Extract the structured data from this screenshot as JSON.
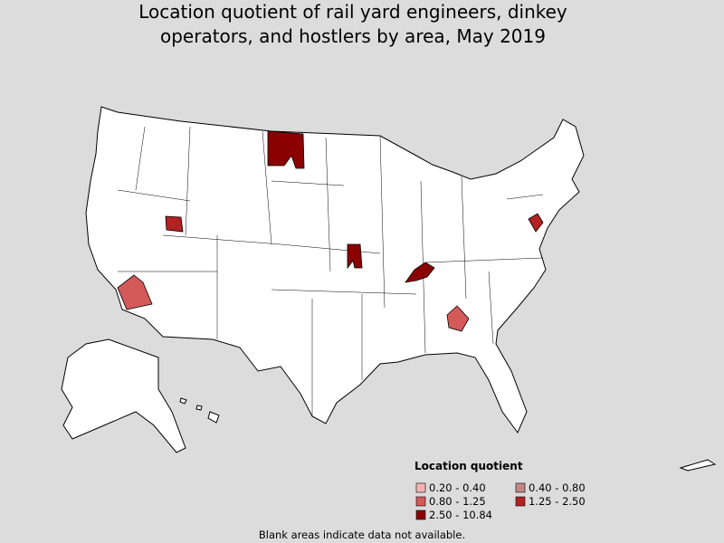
{
  "title": [
    "Location quotient of rail yard engineers, dinkey",
    "operators, and hostlers by area, May 2019"
  ],
  "legend": {
    "title": "Location quotient",
    "items": [
      {
        "label": "0.20 - 0.40",
        "color": "#f4b3b3"
      },
      {
        "label": "0.40 - 0.80",
        "color": "#c48888"
      },
      {
        "label": "0.80 - 1.25",
        "color": "#d45a5a"
      },
      {
        "label": "1.25 - 2.50",
        "color": "#b22222"
      },
      {
        "label": "2.50 - 10.84",
        "color": "#8b0000"
      }
    ]
  },
  "footnote": "Blank areas indicate data not available."
}
